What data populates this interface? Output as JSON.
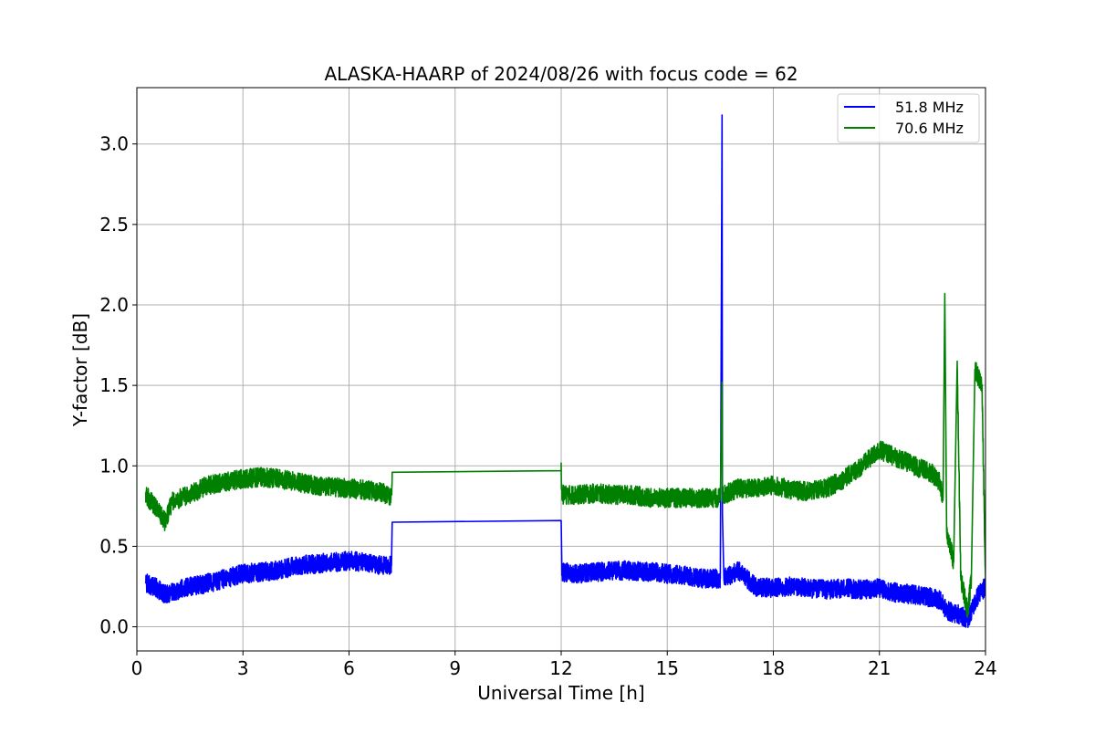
{
  "chart_data": {
    "type": "line",
    "title": "ALASKA-HAARP of 2024/08/26 with focus code = 62",
    "xlabel": "Universal Time [h]",
    "ylabel": "Y-factor [dB]",
    "xlim": [
      0,
      24
    ],
    "ylim": [
      -0.15,
      3.35
    ],
    "xticks": [
      0,
      3,
      6,
      9,
      12,
      15,
      18,
      21,
      24
    ],
    "yticks": [
      0.0,
      0.5,
      1.0,
      1.5,
      2.0,
      2.5,
      3.0
    ],
    "ytick_labels": [
      "0.0",
      "0.5",
      "1.0",
      "1.5",
      "2.0",
      "2.5",
      "3.0"
    ],
    "grid": true,
    "legend_position": "top-right",
    "series": [
      {
        "name": "51.8 MHz",
        "color": "#0000ff",
        "x": [
          0.25,
          0.5,
          0.8,
          1.0,
          1.5,
          2.0,
          2.5,
          3.0,
          3.5,
          4.0,
          4.5,
          5.0,
          5.5,
          6.0,
          6.5,
          7.0,
          7.2,
          7.22,
          12.0,
          12.02,
          12.5,
          13.0,
          13.5,
          14.0,
          14.5,
          15.0,
          15.5,
          16.0,
          16.5,
          16.55,
          16.56,
          16.6,
          17.0,
          17.5,
          18.0,
          18.5,
          19.0,
          19.5,
          20.0,
          20.5,
          21.0,
          21.5,
          22.0,
          22.5,
          22.7,
          22.9,
          23.2,
          23.5,
          23.8,
          24.0
        ],
        "y": [
          0.27,
          0.25,
          0.2,
          0.22,
          0.25,
          0.27,
          0.3,
          0.33,
          0.34,
          0.35,
          0.38,
          0.39,
          0.4,
          0.41,
          0.4,
          0.38,
          0.38,
          0.65,
          0.66,
          0.34,
          0.33,
          0.34,
          0.35,
          0.35,
          0.34,
          0.33,
          0.32,
          0.3,
          0.3,
          3.18,
          0.7,
          0.3,
          0.35,
          0.25,
          0.24,
          0.25,
          0.24,
          0.23,
          0.24,
          0.23,
          0.24,
          0.21,
          0.2,
          0.18,
          0.17,
          0.1,
          0.08,
          0.05,
          0.2,
          0.25
        ],
        "noise": 0.06
      },
      {
        "name": "70.6 MHz",
        "color": "#008000",
        "x": [
          0.25,
          0.5,
          0.8,
          1.0,
          1.5,
          2.0,
          2.5,
          3.0,
          3.5,
          4.0,
          4.5,
          5.0,
          5.5,
          6.0,
          6.5,
          7.0,
          7.2,
          7.22,
          12.0,
          12.02,
          12.5,
          13.0,
          13.5,
          14.0,
          14.5,
          15.0,
          15.5,
          16.0,
          16.5,
          16.55,
          16.56,
          16.6,
          17.0,
          17.5,
          18.0,
          18.5,
          19.0,
          19.5,
          20.0,
          20.5,
          21.0,
          21.5,
          22.0,
          22.5,
          22.7,
          22.8,
          22.85,
          22.9,
          23.1,
          23.2,
          23.3,
          23.5,
          23.6,
          23.7,
          23.9,
          24.0
        ],
        "y": [
          0.82,
          0.75,
          0.65,
          0.78,
          0.82,
          0.88,
          0.9,
          0.92,
          0.93,
          0.92,
          0.9,
          0.88,
          0.87,
          0.86,
          0.85,
          0.83,
          0.8,
          0.96,
          0.97,
          0.82,
          0.82,
          0.83,
          0.82,
          0.82,
          0.8,
          0.8,
          0.8,
          0.8,
          0.8,
          1.52,
          0.82,
          0.82,
          0.86,
          0.86,
          0.88,
          0.85,
          0.84,
          0.86,
          0.92,
          1.0,
          1.1,
          1.05,
          1.0,
          0.95,
          0.9,
          0.8,
          2.07,
          0.6,
          0.4,
          1.65,
          0.3,
          0.1,
          0.3,
          1.6,
          1.5,
          0.3
        ],
        "noise": 0.06
      }
    ]
  }
}
